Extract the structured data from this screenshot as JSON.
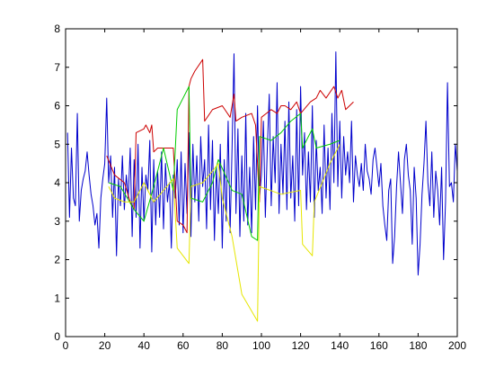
{
  "chart_data": {
    "type": "line",
    "xlim": [
      0,
      200
    ],
    "xticks": [
      0,
      20,
      40,
      60,
      80,
      100,
      120,
      140,
      160,
      180,
      200
    ],
    "ylim": [
      0,
      8
    ],
    "yticks": [
      0,
      1,
      2,
      3,
      4,
      5,
      6,
      7,
      8
    ],
    "grid": false,
    "series": [
      {
        "color": "#0000cc",
        "x": [
          1,
          2,
          3,
          4,
          5,
          6,
          7,
          8,
          9,
          10,
          11,
          12,
          13,
          14,
          15,
          16,
          17,
          18,
          19,
          20,
          21,
          22,
          23,
          24,
          25,
          26,
          27,
          28,
          29,
          30,
          31,
          32,
          33,
          34,
          35,
          36,
          37,
          38,
          39,
          40,
          41,
          42,
          43,
          44,
          45,
          46,
          47,
          48,
          49,
          50,
          51,
          52,
          53,
          54,
          55,
          56,
          57,
          58,
          59,
          60,
          61,
          62,
          63,
          64,
          65,
          66,
          67,
          68,
          69,
          70,
          71,
          72,
          73,
          74,
          75,
          76,
          77,
          78,
          79,
          80,
          81,
          82,
          83,
          84,
          85,
          86,
          87,
          88,
          89,
          90,
          91,
          92,
          93,
          94,
          95,
          96,
          97,
          98,
          99,
          100,
          101,
          102,
          103,
          104,
          105,
          106,
          107,
          108,
          109,
          110,
          111,
          112,
          113,
          114,
          115,
          116,
          117,
          118,
          119,
          120,
          121,
          122,
          123,
          124,
          125,
          126,
          127,
          128,
          129,
          130,
          131,
          132,
          133,
          134,
          135,
          136,
          137,
          138,
          139,
          140,
          141,
          142,
          143,
          144,
          145,
          146,
          147,
          148,
          149,
          150,
          151,
          152,
          153,
          154,
          155,
          156,
          157,
          158,
          159,
          160,
          161,
          162,
          163,
          164,
          165,
          166,
          167,
          168,
          169,
          170,
          171,
          172,
          173,
          174,
          175,
          176,
          177,
          178,
          179,
          180,
          181,
          182,
          183,
          184,
          185,
          186,
          187,
          188,
          189,
          190,
          191,
          192,
          193,
          194,
          195,
          196,
          197,
          198,
          199,
          200
        ],
        "values": [
          5.3,
          3.1,
          4.9,
          3.6,
          3.4,
          5.8,
          3.0,
          3.8,
          4.1,
          4.3,
          4.8,
          4.2,
          3.7,
          3.4,
          2.9,
          3.2,
          2.3,
          3.6,
          4.1,
          4.5,
          6.2,
          4.0,
          4.7,
          3.1,
          4.4,
          2.1,
          4.1,
          3.4,
          4.7,
          3.3,
          4.2,
          3.6,
          4.9,
          2.6,
          4.6,
          3.1,
          5.0,
          2.3,
          4.4,
          3.0,
          4.2,
          3.8,
          5.1,
          2.2,
          4.6,
          2.9,
          4.3,
          3.1,
          4.8,
          2.8,
          4.5,
          3.5,
          4.0,
          2.3,
          4.2,
          3.6,
          4.6,
          2.9,
          4.8,
          2.7,
          4.5,
          3.2,
          5.3,
          2.6,
          5.0,
          3.5,
          4.7,
          3.0,
          5.2,
          3.9,
          4.6,
          2.8,
          5.5,
          3.3,
          5.1,
          2.5,
          4.4,
          3.2,
          5.0,
          2.3,
          4.6,
          3.0,
          5.6,
          2.7,
          4.9,
          7.35,
          3.2,
          5.4,
          2.6,
          4.7,
          3.0,
          5.8,
          2.9,
          4.4,
          2.7,
          5.2,
          3.3,
          6.0,
          3.6,
          4.2,
          5.6,
          3.1,
          4.9,
          6.3,
          3.4,
          5.2,
          4.0,
          6.6,
          3.2,
          5.0,
          3.7,
          5.6,
          3.3,
          6.1,
          3.6,
          4.7,
          3.0,
          5.9,
          3.4,
          6.5,
          4.2,
          5.3,
          3.3,
          4.8,
          3.5,
          6.0,
          3.1,
          5.1,
          3.8,
          4.4,
          3.2,
          5.5,
          3.6,
          4.9,
          3.3,
          5.8,
          4.0,
          7.4,
          3.9,
          5.6,
          3.6,
          5.2,
          4.2,
          4.8,
          4.0,
          5.6,
          3.5,
          4.7,
          4.2,
          3.9,
          4.5,
          3.8,
          5.0,
          4.3,
          4.1,
          3.7,
          4.6,
          4.9,
          4.4,
          3.9,
          4.5,
          3.4,
          2.9,
          2.5,
          3.8,
          4.1,
          1.9,
          2.6,
          3.9,
          4.8,
          4.0,
          3.2,
          4.6,
          5.0,
          4.2,
          3.8,
          2.4,
          4.4,
          3.6,
          1.6,
          2.4,
          3.7,
          4.5,
          5.6,
          4.0,
          3.4,
          4.8,
          3.1,
          4.3,
          3.8,
          2.9,
          4.4,
          2.0,
          3.5,
          6.6,
          3.9,
          4.0,
          3.5,
          5.0,
          4.3
        ]
      },
      {
        "color": "#cc0000",
        "x": [
          21,
          25,
          30,
          33,
          35,
          36,
          40,
          41,
          43,
          44,
          45,
          47,
          50,
          52,
          55,
          57,
          60,
          62,
          63,
          64,
          66,
          70,
          71,
          75,
          80,
          84,
          86,
          87,
          90,
          95,
          97,
          99,
          100,
          105,
          108,
          110,
          112,
          115,
          118,
          120,
          125,
          128,
          130,
          133,
          137,
          139,
          141,
          143,
          147
        ],
        "values": [
          4.7,
          4.2,
          4.0,
          3.5,
          3.3,
          5.3,
          5.4,
          5.5,
          5.3,
          5.5,
          4.8,
          4.9,
          4.9,
          4.9,
          4.9,
          3.0,
          2.9,
          2.7,
          6.5,
          6.7,
          6.9,
          7.2,
          5.6,
          5.9,
          6.0,
          5.7,
          6.3,
          5.6,
          5.7,
          5.8,
          5.5,
          3.5,
          5.7,
          5.9,
          5.8,
          6.0,
          6.0,
          5.9,
          6.1,
          5.8,
          6.1,
          6.2,
          6.4,
          6.2,
          6.5,
          6.2,
          6.4,
          5.9,
          6.1
        ]
      },
      {
        "color": "#00cc00",
        "x": [
          22,
          28,
          35,
          40,
          45,
          50,
          55,
          57,
          60,
          63,
          64,
          70,
          75,
          78,
          85,
          90,
          95,
          98,
          99,
          105,
          110,
          115,
          120,
          121,
          126,
          128,
          135,
          140
        ],
        "values": [
          4.0,
          3.9,
          3.3,
          3.0,
          3.9,
          4.9,
          3.8,
          5.9,
          6.2,
          6.5,
          3.6,
          3.5,
          4.0,
          4.6,
          3.8,
          3.7,
          2.6,
          2.5,
          5.2,
          5.1,
          5.3,
          5.6,
          5.8,
          4.9,
          5.4,
          4.9,
          5.0,
          5.1
        ]
      },
      {
        "color": "#e6e600",
        "x": [
          22,
          25,
          30,
          35,
          40,
          45,
          50,
          55,
          57,
          63,
          64,
          70,
          75,
          78,
          80,
          85,
          90,
          98,
          99,
          110,
          120,
          121,
          126,
          127,
          135,
          140
        ],
        "values": [
          3.9,
          3.6,
          3.5,
          3.5,
          4.0,
          3.5,
          3.8,
          4.1,
          2.3,
          1.9,
          3.9,
          4.0,
          4.3,
          4.5,
          3.6,
          2.6,
          1.1,
          0.4,
          3.9,
          3.7,
          3.8,
          2.4,
          2.1,
          3.5,
          4.5,
          5.0
        ]
      }
    ]
  }
}
